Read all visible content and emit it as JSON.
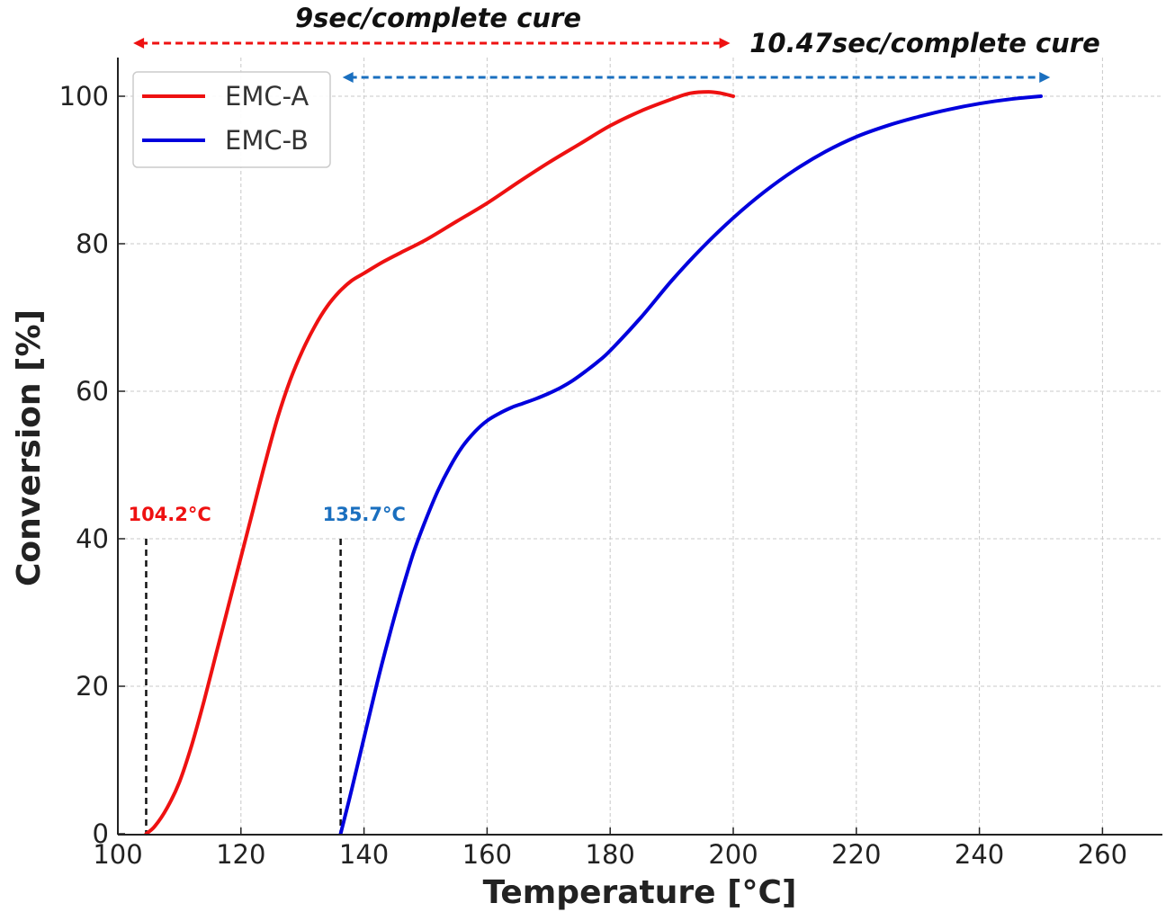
{
  "chart_data": {
    "type": "line",
    "xlabel": "Temperature [°C]",
    "ylabel": "Conversion [%]",
    "xlim": [
      100,
      270
    ],
    "ylim": [
      0,
      105
    ],
    "xticks": [
      100,
      120,
      140,
      160,
      180,
      200,
      220,
      240,
      260
    ],
    "yticks": [
      0,
      20,
      40,
      60,
      80,
      100
    ],
    "grid": true,
    "legend_position": "top-left",
    "series": [
      {
        "name": "EMC-A",
        "color": "#ee1111",
        "x": [
          104.6,
          106,
          108,
          110,
          112,
          114,
          116,
          118,
          120,
          122,
          124,
          126,
          128,
          130,
          132,
          134,
          136,
          138,
          140,
          143,
          146,
          150,
          155,
          160,
          165,
          170,
          175,
          180,
          185,
          190,
          193,
          196,
          198,
          200
        ],
        "y": [
          0,
          1,
          3.5,
          7,
          12,
          18,
          24.5,
          31,
          37.5,
          44,
          50.5,
          56.5,
          61.5,
          65.5,
          68.8,
          71.5,
          73.5,
          75,
          76,
          77.5,
          78.8,
          80.5,
          83,
          85.5,
          88.3,
          91,
          93.5,
          96,
          98,
          99.6,
          100.4,
          100.6,
          100.4,
          100
        ]
      },
      {
        "name": "EMC-B",
        "color": "#0000dd",
        "x": [
          136.2,
          138,
          140,
          142,
          144,
          146,
          148,
          150,
          152,
          154,
          156,
          158,
          160,
          162,
          164,
          166,
          168,
          170,
          172,
          174,
          176,
          178,
          180,
          185,
          190,
          195,
          200,
          205,
          210,
          215,
          220,
          225,
          230,
          235,
          240,
          245,
          250
        ],
        "y": [
          0,
          6,
          13,
          20,
          26.5,
          32.5,
          38,
          42.5,
          46.5,
          49.8,
          52.5,
          54.5,
          56,
          57,
          57.8,
          58.4,
          59,
          59.7,
          60.5,
          61.5,
          62.7,
          64,
          65.5,
          70,
          75,
          79.5,
          83.5,
          87,
          90,
          92.5,
          94.5,
          96,
          97.2,
          98.2,
          99,
          99.6,
          100
        ]
      }
    ],
    "annotations": [
      {
        "id": "emc-a-onset",
        "label": "104.2°C",
        "x": 104.6,
        "y_top": 40,
        "color": "#ee1111"
      },
      {
        "id": "emc-b-onset",
        "label": "135.7°C",
        "x": 136.2,
        "y_top": 40,
        "color": "#1a6fbf"
      }
    ],
    "range_arrows": [
      {
        "id": "emc-a-range",
        "label": "9sec/complete cure",
        "x_start": 102.5,
        "x_end": 199.5,
        "color": "#ee1111"
      },
      {
        "id": "emc-b-range",
        "label": "10.47sec/complete cure",
        "x_start": 136.5,
        "x_end": 251.5,
        "color": "#1a6fbf"
      }
    ]
  }
}
